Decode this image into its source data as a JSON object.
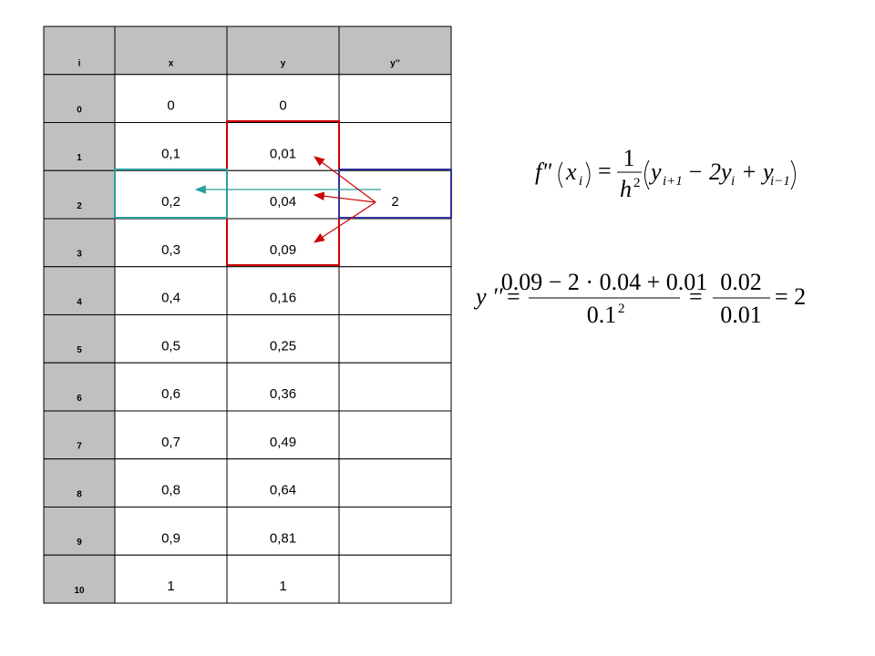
{
  "table": {
    "header": [
      "i",
      "x",
      "y",
      "y’’"
    ],
    "rows": [
      [
        "0",
        "0",
        "0"
      ],
      [
        "1",
        "0,1",
        "0,01"
      ],
      [
        "2",
        "0,2",
        "0,04",
        "2"
      ],
      [
        "3",
        "0,3",
        "0,09"
      ],
      [
        "4",
        "0,4",
        "0,16"
      ],
      [
        "5",
        "0,5",
        "0,25"
      ],
      [
        "6",
        "0,6",
        "0,36"
      ],
      [
        "7",
        "0,7",
        "0,49"
      ],
      [
        "8",
        "0,8",
        "0,64"
      ],
      [
        "9",
        "0,9",
        "0,81"
      ],
      [
        "10",
        "1",
        "1"
      ]
    ]
  },
  "formula_1": {
    "f": "f\"",
    "x": "x",
    "x_sub": "i",
    "equals": "=",
    "numerator": "1",
    "h": "h",
    "h_sup": "2",
    "y": "y",
    "y_sub": "i+1",
    "minus": "− 2y",
    "minus_sub": "i",
    "plus": "+ y",
    "plus_sub": "i−1"
  },
  "formula_2": {
    "lhs": "y ′′",
    "eq1": "=",
    "num1": "0.09 − 2 · 0.04 + 0.01",
    "den1": "0.1",
    "den1_sup": "2",
    "eq2": "=",
    "num2": "0.02",
    "den2": "0.01",
    "eq3": "= 2"
  }
}
